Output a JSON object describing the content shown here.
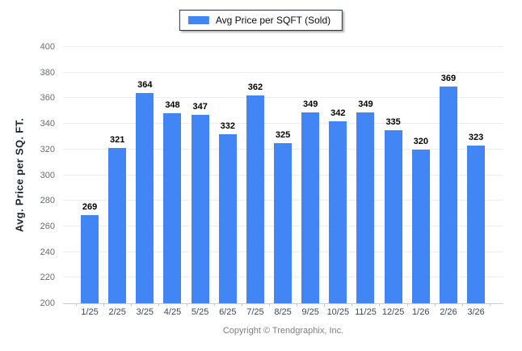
{
  "chart": {
    "legend_label": "Avg Price per SQFT (Sold)",
    "y_axis_title": "Avg. Price per SQ. FT.",
    "footer": "Copyright © Trendgraphix, Inc."
  },
  "chart_data": {
    "type": "bar",
    "title": "",
    "legend": [
      "Avg Price per SQFT (Sold)"
    ],
    "legend_position": "top-center",
    "categories": [
      "1/25",
      "2/25",
      "3/25",
      "4/25",
      "5/25",
      "6/25",
      "7/25",
      "8/25",
      "9/25",
      "10/25",
      "11/25",
      "12/25",
      "1/26",
      "2/26",
      "3/26"
    ],
    "values": [
      269,
      321,
      364,
      348,
      347,
      332,
      362,
      325,
      349,
      342,
      349,
      335,
      320,
      369,
      323
    ],
    "xlabel": "",
    "ylabel": "Avg. Price per SQ. FT.",
    "ylim": [
      200,
      400
    ],
    "ytick_step": 20,
    "grid": "horizontal",
    "bar_color": "#4285f4"
  }
}
